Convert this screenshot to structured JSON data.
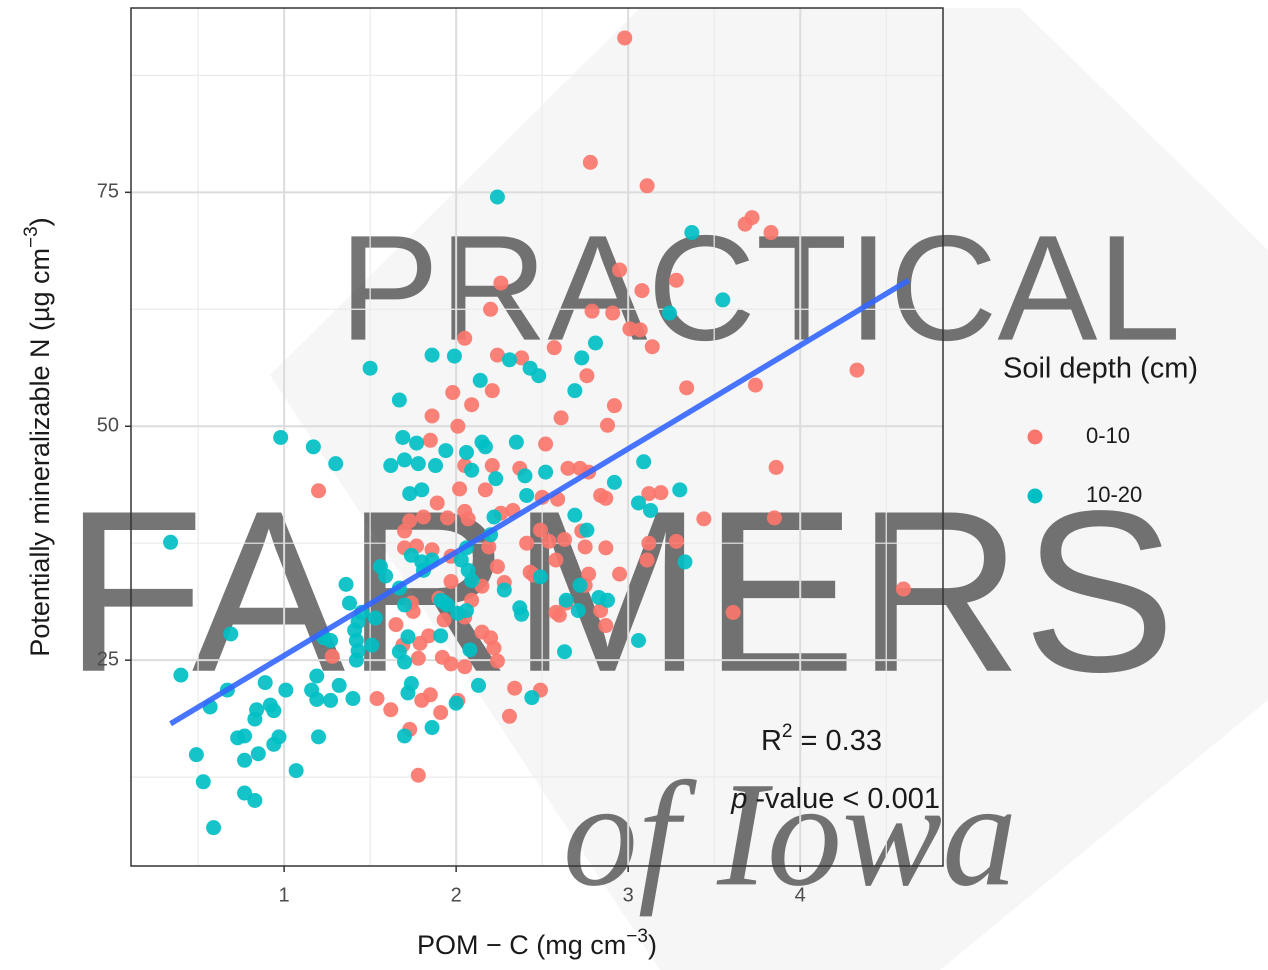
{
  "chart_data": {
    "type": "scatter",
    "xlabel": [
      "POM − C (mg cm",
      "−3",
      ")"
    ],
    "ylabel": [
      "Potentially mineralizable N (µg cm",
      "−3",
      ")"
    ],
    "xlim": [
      0.11,
      4.83
    ],
    "ylim": [
      3.0,
      94.7
    ],
    "xticks": [
      1,
      2,
      3,
      4
    ],
    "yticks": [
      25,
      50,
      75
    ],
    "xminor": [
      0.5,
      1.5,
      2.5,
      3.5,
      4.5
    ],
    "yminor": [
      12.5,
      37.5,
      62.5,
      87.5
    ],
    "grid": true,
    "legend_title": "Soil depth (cm)",
    "legend_position": "right",
    "watermark": [
      "PRACTICAL",
      "FARMERS",
      "of Iowa"
    ],
    "annotations": [
      [
        "R",
        "2",
        " = 0.33"
      ],
      [
        "p",
        " -value < 0.001"
      ]
    ],
    "trend": {
      "color": "#3366FF",
      "x": [
        0.34,
        4.63
      ],
      "values": [
        18.2,
        65.6
      ]
    },
    "series": [
      {
        "name": "0-10",
        "color": "#F8766D",
        "x": [
          2.98,
          2.78,
          3.11,
          3.68,
          3.72,
          3.83,
          2.95,
          3.28,
          3.08,
          2.26,
          2.2,
          2.79,
          2.91,
          3.01,
          3.07,
          3.14,
          2.05,
          2.57,
          2.24,
          2.38,
          4.33,
          2.76,
          3.74,
          3.34,
          2.21,
          1.98,
          2.09,
          1.86,
          2.92,
          2.61,
          2.88,
          2.01,
          2.52,
          1.85,
          2.05,
          2.21,
          2.37,
          2.65,
          2.72,
          2.77,
          2.02,
          2.17,
          2.5,
          2.59,
          2.84,
          2.87,
          3.12,
          3.19,
          3.86,
          1.89,
          2.05,
          2.26,
          2.33,
          2.07,
          1.95,
          1.81,
          1.7,
          1.73,
          3.85,
          3.44,
          2.49,
          2.63,
          2.54,
          2.73,
          2.41,
          2.19,
          1.86,
          1.77,
          3.12,
          3.28,
          2.75,
          2.87,
          3.11,
          2.95,
          2.58,
          2.77,
          2.24,
          2.43,
          2.28,
          2.15,
          1.97,
          1.9,
          1.74,
          1.75,
          2.09,
          2.64,
          2.75,
          4.6,
          3.61,
          2.45,
          2.6,
          2.84,
          2.87,
          2.58,
          2.05,
          1.93,
          2.15,
          2.2,
          2.22,
          2.24,
          1.92,
          1.84,
          1.79,
          1.65,
          1.69,
          1.78,
          1.28,
          1.97,
          2.05,
          1.54,
          1.85,
          1.8,
          2.01,
          2.34,
          2.49,
          2.31,
          1.91,
          1.62,
          1.73,
          1.78,
          1.2,
          1.7,
          1.97
        ],
        "values": [
          91.5,
          78.2,
          75.7,
          71.6,
          72.3,
          70.7,
          66.7,
          65.6,
          64.5,
          65.3,
          62.5,
          62.3,
          62.1,
          60.4,
          60.3,
          58.5,
          59.4,
          58.4,
          57.6,
          57.3,
          56.0,
          55.4,
          54.4,
          54.1,
          53.8,
          53.6,
          52.3,
          51.1,
          52.2,
          50.9,
          50.1,
          50.0,
          48.1,
          48.5,
          45.8,
          45.8,
          45.5,
          45.5,
          45.5,
          45.1,
          43.3,
          43.2,
          42.4,
          42.2,
          42.6,
          42.3,
          42.8,
          42.9,
          45.6,
          41.8,
          40.9,
          40.7,
          41.0,
          40.1,
          40.2,
          40.3,
          38.8,
          39.9,
          40.2,
          40.1,
          38.9,
          37.9,
          37.7,
          38.8,
          37.5,
          37.1,
          36.8,
          37.2,
          37.5,
          37.7,
          37.1,
          37.0,
          35.7,
          34.2,
          35.7,
          34.2,
          35.0,
          34.4,
          33.3,
          32.9,
          33.4,
          31.6,
          31.1,
          30.2,
          31.4,
          31.1,
          33.0,
          32.6,
          30.1,
          34.1,
          29.8,
          30.3,
          28.7,
          30.1,
          29.6,
          29.3,
          28.0,
          27.4,
          26.3,
          24.9,
          25.3,
          27.6,
          26.8,
          28.8,
          26.6,
          25.2,
          25.4,
          24.6,
          24.3,
          20.9,
          21.3,
          20.7,
          20.7,
          22.0,
          21.8,
          19.0,
          19.4,
          19.7,
          17.6,
          12.7,
          43.1,
          37.0,
          36.1
        ]
      },
      {
        "name": "10-20",
        "color": "#00BFC4",
        "x": [
          2.24,
          3.37,
          3.55,
          3.24,
          1.5,
          1.86,
          1.99,
          2.31,
          2.43,
          2.48,
          2.73,
          2.81,
          2.69,
          2.14,
          1.67,
          0.98,
          1.17,
          1.3,
          1.69,
          1.77,
          1.94,
          2.15,
          2.17,
          2.35,
          2.06,
          1.62,
          1.7,
          1.78,
          1.88,
          2.09,
          2.23,
          2.4,
          2.52,
          3.09,
          2.92,
          1.73,
          1.8,
          2.41,
          3.3,
          3.06,
          3.13,
          2.22,
          2.69,
          2.76,
          2.2,
          2.06,
          2.03,
          2.07,
          2.09,
          0.34,
          1.74,
          1.8,
          1.86,
          1.81,
          1.56,
          1.59,
          1.36,
          1.38,
          1.45,
          1.43,
          1.53,
          1.67,
          1.7,
          1.91,
          1.95,
          2.01,
          2.06,
          2.28,
          2.37,
          2.38,
          2.49,
          2.64,
          2.72,
          2.83,
          2.88,
          2.71,
          3.33,
          3.06,
          2.63,
          2.44,
          2.13,
          2.0,
          2.08,
          1.72,
          1.67,
          1.7,
          1.74,
          1.72,
          1.7,
          1.86,
          1.23,
          1.27,
          1.42,
          1.43,
          1.42,
          1.51,
          1.41,
          1.19,
          1.16,
          1.19,
          1.32,
          1.27,
          1.2,
          1.01,
          0.92,
          0.94,
          0.97,
          0.94,
          0.89,
          0.84,
          0.83,
          0.85,
          0.77,
          0.73,
          0.77,
          0.69,
          0.67,
          0.57,
          0.4,
          0.49,
          0.53,
          0.77,
          0.83,
          0.59,
          1.07,
          1.93,
          1.91,
          1.4
        ],
        "values": [
          74.5,
          70.7,
          63.5,
          62.1,
          56.2,
          57.6,
          57.5,
          57.1,
          56.2,
          55.4,
          57.3,
          58.9,
          53.8,
          54.9,
          52.8,
          48.8,
          47.8,
          46.0,
          48.8,
          48.2,
          47.4,
          48.3,
          47.8,
          48.3,
          47.2,
          45.8,
          46.4,
          46.0,
          45.8,
          45.3,
          44.4,
          44.7,
          45.1,
          46.2,
          44.0,
          42.8,
          43.2,
          42.6,
          43.2,
          41.8,
          41.0,
          40.3,
          40.5,
          38.9,
          38.4,
          37.0,
          35.7,
          34.6,
          33.5,
          37.6,
          36.2,
          35.5,
          35.7,
          34.6,
          35.0,
          34.0,
          33.1,
          31.1,
          30.1,
          29.1,
          29.5,
          32.7,
          30.9,
          31.4,
          30.9,
          30.0,
          30.3,
          32.5,
          30.6,
          29.9,
          33.9,
          31.4,
          33.0,
          31.7,
          31.4,
          30.3,
          35.5,
          27.1,
          25.9,
          21.0,
          22.3,
          20.4,
          26.1,
          27.5,
          25.9,
          24.8,
          22.5,
          21.5,
          16.9,
          17.8,
          27.4,
          27.1,
          27.1,
          26.0,
          25.0,
          26.6,
          28.2,
          23.3,
          21.8,
          20.8,
          22.3,
          20.7,
          16.8,
          21.8,
          20.2,
          19.6,
          16.8,
          16.0,
          22.6,
          19.7,
          18.7,
          15.0,
          16.9,
          16.7,
          14.3,
          27.8,
          21.8,
          20.0,
          23.4,
          14.9,
          12.0,
          10.8,
          10.0,
          7.1,
          13.2,
          31.2,
          27.6,
          20.9
        ]
      }
    ]
  }
}
